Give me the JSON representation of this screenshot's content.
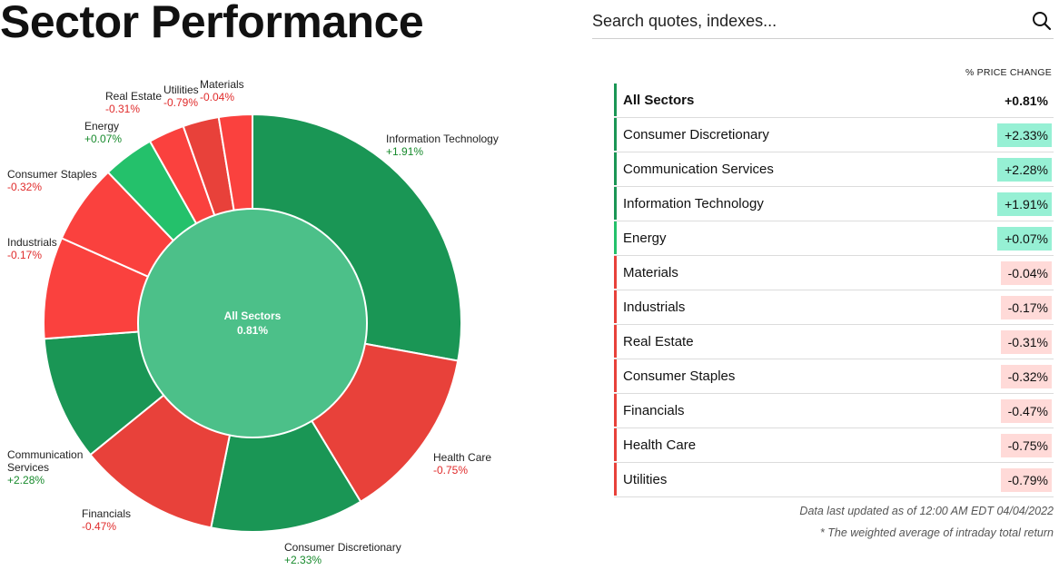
{
  "page": {
    "title": "Sector Performance"
  },
  "search": {
    "placeholder": "Search quotes, indexes..."
  },
  "colors": {
    "pos_dark": "#1a9655",
    "pos_light": "#24c16b",
    "neg": "#e8413a",
    "neg_light": "#fa413e",
    "center": "#4cc089",
    "pos_text": "#178a2c",
    "neg_text": "#e02b2b",
    "pos_badge": "#96f0d4",
    "neg_badge": "#ffdad8"
  },
  "chart_data": {
    "type": "pie",
    "center": {
      "label": "All Sectors",
      "value": "0.81%"
    },
    "slices": [
      {
        "name": "Information Technology",
        "change": "+1.91%",
        "value": 1.91,
        "weight": 28.0
      },
      {
        "name": "Health Care",
        "change": "-0.75%",
        "value": -0.75,
        "weight": 13.5
      },
      {
        "name": "Consumer Discretionary",
        "change": "+2.33%",
        "value": 2.33,
        "weight": 11.9
      },
      {
        "name": "Financials",
        "change": "-0.47%",
        "value": -0.47,
        "weight": 11.0
      },
      {
        "name": "Communication Services",
        "change": "+2.28%",
        "value": 2.28,
        "weight": 9.7
      },
      {
        "name": "Industrials",
        "change": "-0.17%",
        "value": -0.17,
        "weight": 7.9
      },
      {
        "name": "Consumer Staples",
        "change": "-0.32%",
        "value": -0.32,
        "weight": 6.2
      },
      {
        "name": "Energy",
        "change": "+0.07%",
        "value": 0.07,
        "weight": 4.0
      },
      {
        "name": "Real Estate",
        "change": "-0.31%",
        "value": -0.31,
        "weight": 2.8
      },
      {
        "name": "Utilities",
        "change": "-0.79%",
        "value": -0.79,
        "weight": 2.8
      },
      {
        "name": "Materials",
        "change": "-0.04%",
        "value": -0.04,
        "weight": 2.6
      }
    ]
  },
  "labels": [
    {
      "name": "Information Technology",
      "change": "+1.91%",
      "sign": "pos"
    },
    {
      "name": "Health Care",
      "change": "-0.75%",
      "sign": "neg"
    },
    {
      "name": "Consumer Discretionary",
      "change": "+2.33%",
      "sign": "pos"
    },
    {
      "name": "Financials",
      "change": "-0.47%",
      "sign": "neg"
    },
    {
      "name": "Communication\nServices",
      "change": "+2.28%",
      "sign": "pos"
    },
    {
      "name": "Industrials",
      "change": "-0.17%",
      "sign": "neg"
    },
    {
      "name": "Consumer Staples",
      "change": "-0.32%",
      "sign": "neg"
    },
    {
      "name": "Energy",
      "change": "+0.07%",
      "sign": "pos"
    },
    {
      "name": "Real Estate",
      "change": "-0.31%",
      "sign": "neg"
    },
    {
      "name": "Utilities",
      "change": "-0.79%",
      "sign": "neg"
    },
    {
      "name": "Materials",
      "change": "-0.04%",
      "sign": "neg"
    }
  ],
  "table": {
    "header": "% PRICE CHANGE",
    "rows": [
      {
        "name": "All Sectors",
        "change": "+0.81%",
        "sign": "pos",
        "all": true
      },
      {
        "name": "Consumer Discretionary",
        "change": "+2.33%",
        "sign": "pos"
      },
      {
        "name": "Communication Services",
        "change": "+2.28%",
        "sign": "pos"
      },
      {
        "name": "Information Technology",
        "change": "+1.91%",
        "sign": "pos"
      },
      {
        "name": "Energy",
        "change": "+0.07%",
        "sign": "pos"
      },
      {
        "name": "Materials",
        "change": "-0.04%",
        "sign": "neg"
      },
      {
        "name": "Industrials",
        "change": "-0.17%",
        "sign": "neg"
      },
      {
        "name": "Real Estate",
        "change": "-0.31%",
        "sign": "neg"
      },
      {
        "name": "Consumer Staples",
        "change": "-0.32%",
        "sign": "neg"
      },
      {
        "name": "Financials",
        "change": "-0.47%",
        "sign": "neg"
      },
      {
        "name": "Health Care",
        "change": "-0.75%",
        "sign": "neg"
      },
      {
        "name": "Utilities",
        "change": "-0.79%",
        "sign": "neg"
      }
    ],
    "updated": "Data last updated as of 12:00 AM EDT 04/04/2022",
    "note": "* The weighted average of intraday total return"
  }
}
